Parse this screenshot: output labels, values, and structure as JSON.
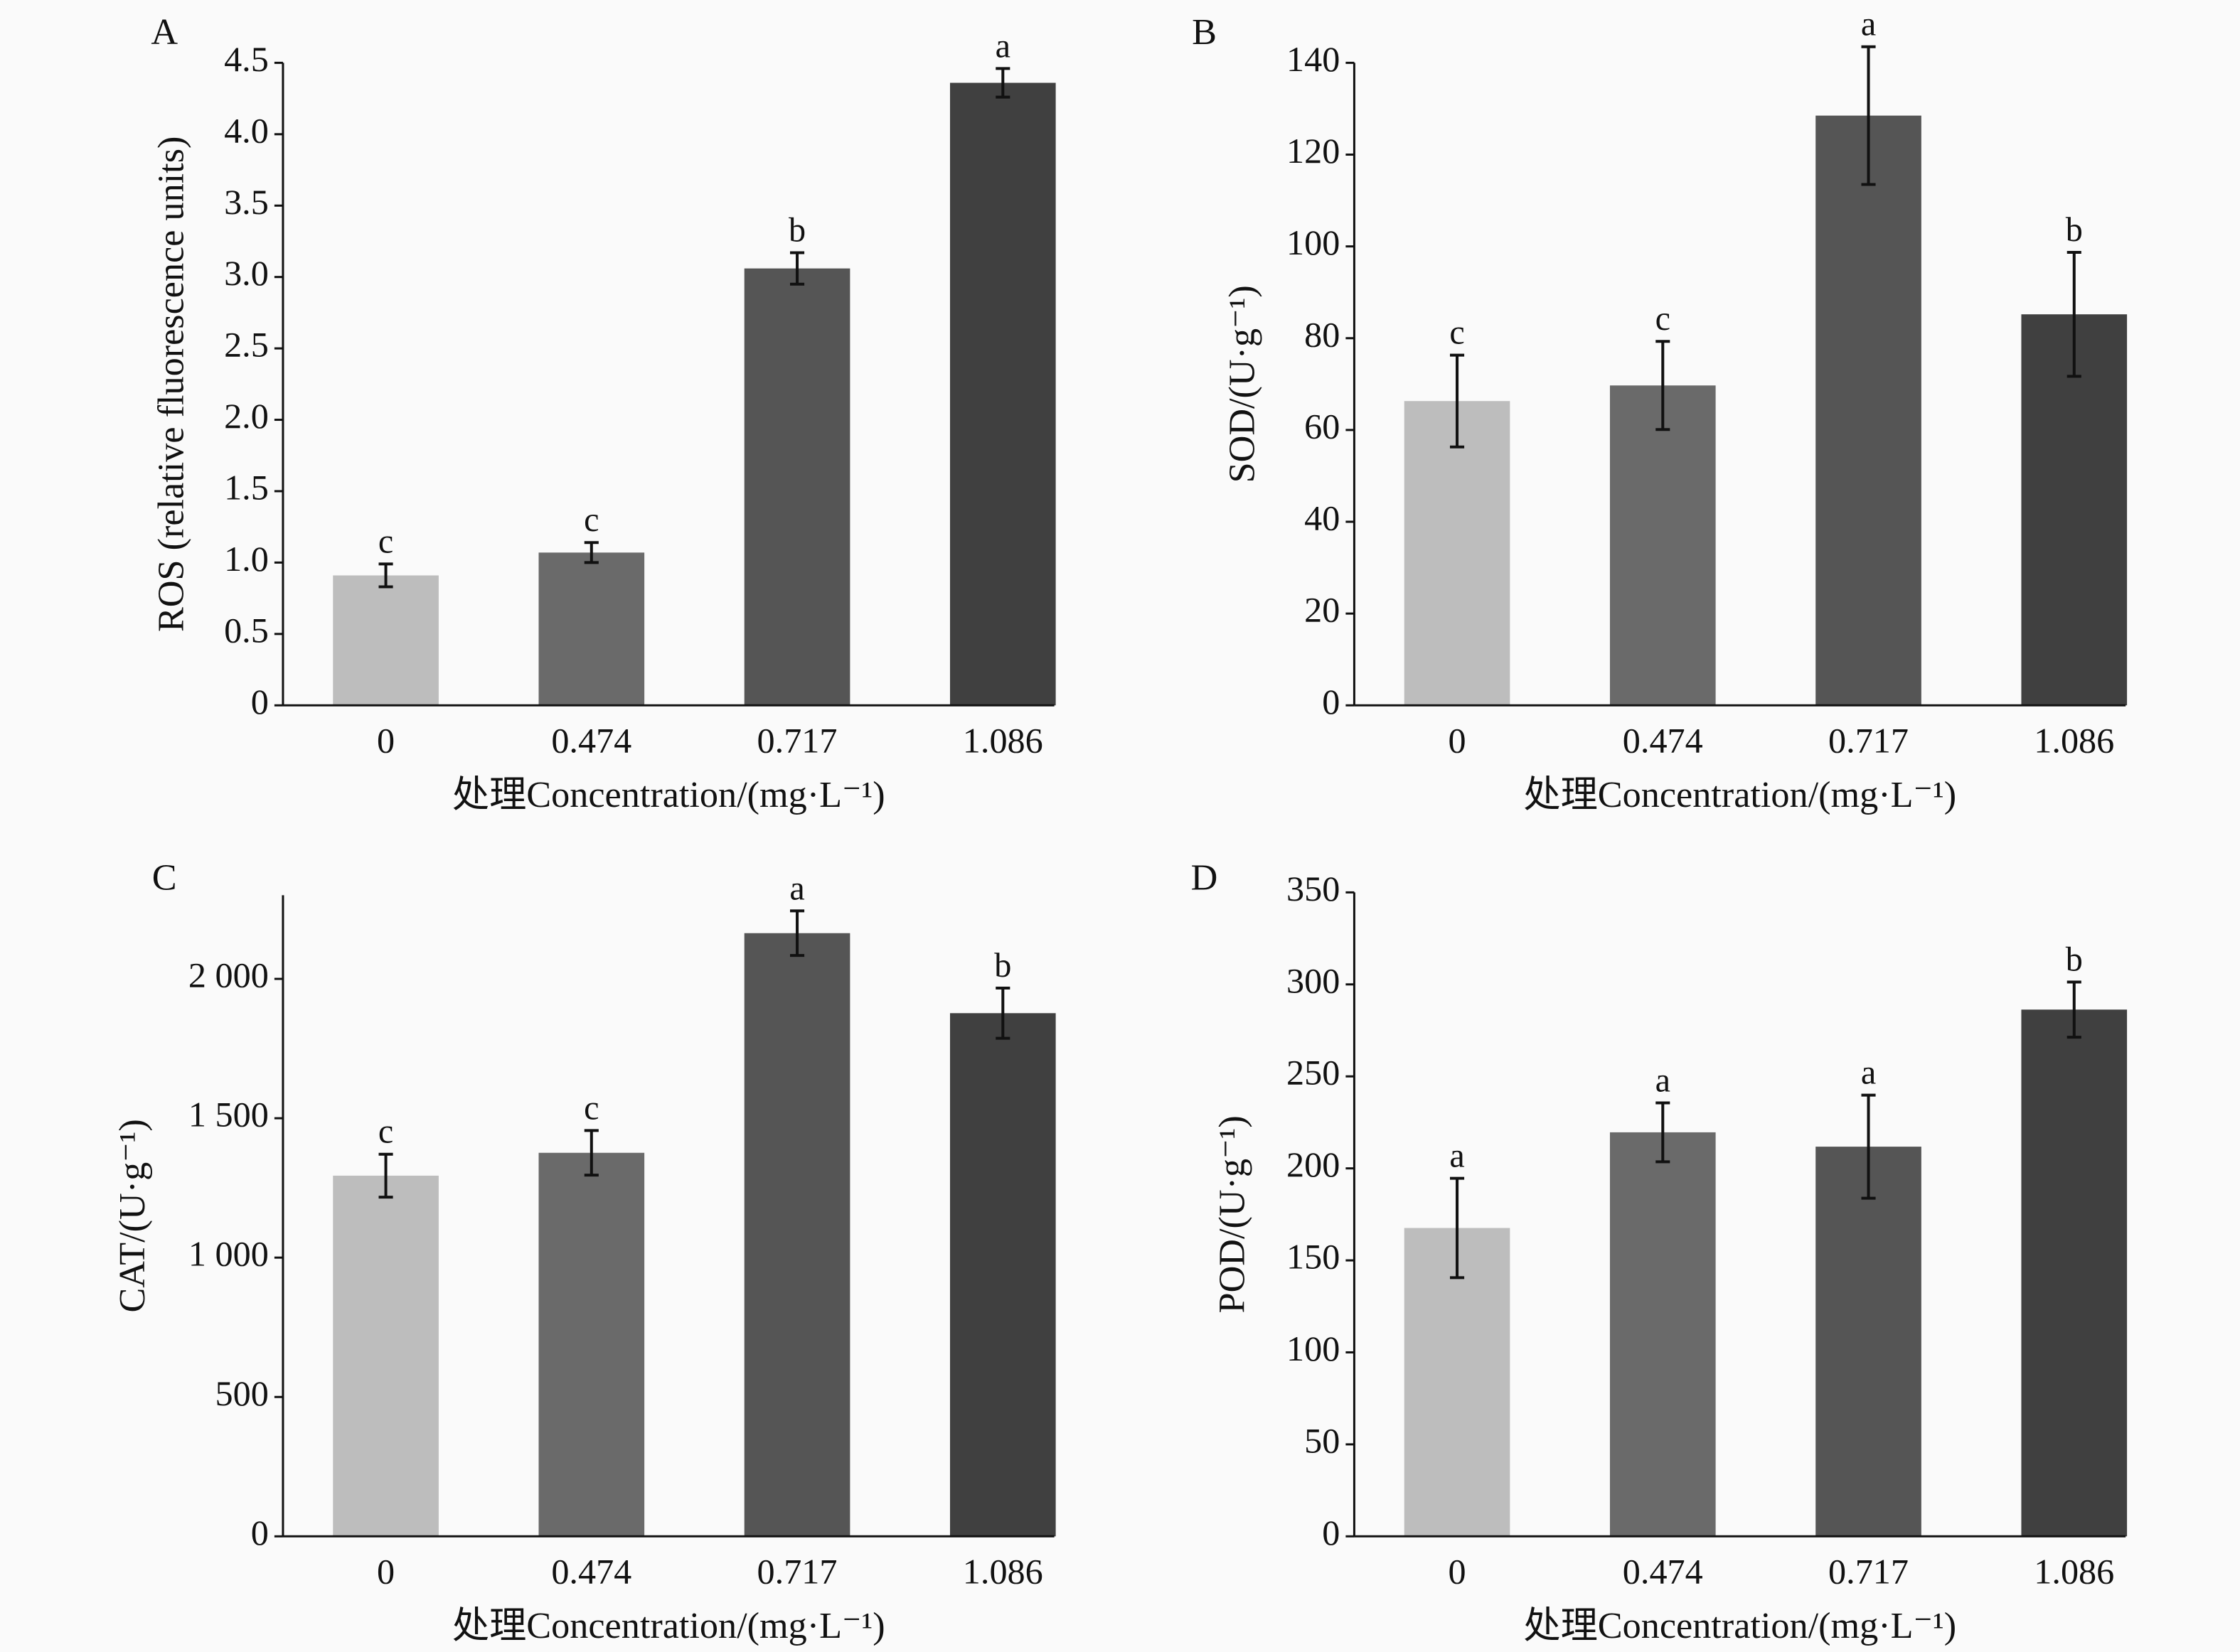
{
  "chart_data": [
    {
      "type": "bar",
      "panel": "A",
      "categories": [
        "0",
        "0.474",
        "0.717",
        "1.086"
      ],
      "values": [
        0.91,
        1.07,
        3.06,
        4.36
      ],
      "errors": [
        0.08,
        0.07,
        0.11,
        0.1
      ],
      "letters": [
        "c",
        "c",
        "b",
        "a"
      ],
      "xlabel": "处理Concentration/(mg·L⁻¹)",
      "ylabel": "ROS (relative fluorescence units)",
      "ylim": [
        0,
        4.5
      ],
      "yticks": [
        0,
        0.5,
        1.0,
        1.5,
        2.0,
        2.5,
        3.0,
        3.5,
        4.0,
        4.5
      ],
      "ytick_labels": [
        "0",
        "0.5",
        "1.0",
        "1.5",
        "2.0",
        "2.5",
        "3.0",
        "3.5",
        "4.0",
        "4.5"
      ]
    },
    {
      "type": "bar",
      "panel": "B",
      "categories": [
        "0",
        "0.474",
        "0.717",
        "1.086"
      ],
      "values": [
        66.3,
        69.7,
        128.5,
        85.2
      ],
      "errors": [
        10,
        9.6,
        15,
        13.5
      ],
      "letters": [
        "c",
        "c",
        "a",
        "b"
      ],
      "xlabel": "处理Concentration/(mg·L⁻¹)",
      "ylabel": "SOD/(U·g⁻¹)",
      "ylim": [
        0,
        140
      ],
      "yticks": [
        0,
        20,
        40,
        60,
        80,
        100,
        120,
        140
      ],
      "ytick_labels": [
        "0",
        "20",
        "40",
        "60",
        "80",
        "100",
        "120",
        "140"
      ]
    },
    {
      "type": "bar",
      "panel": "C",
      "categories": [
        "0",
        "0.474",
        "0.717",
        "1.086"
      ],
      "values": [
        1294,
        1376,
        2164,
        1877
      ],
      "errors": [
        77,
        80,
        80,
        90
      ],
      "letters": [
        "c",
        "c",
        "a",
        "b"
      ],
      "xlabel": "处理Concentration/(mg·L⁻¹)",
      "ylabel": "CAT/(U·g⁻¹)",
      "ylim": [
        0,
        2300
      ],
      "yticks": [
        0,
        500,
        1000,
        1500,
        2000
      ],
      "ytick_labels": [
        "0",
        "500",
        "1 000",
        "1 500",
        "2 000"
      ]
    },
    {
      "type": "bar",
      "panel": "D",
      "categories": [
        "0",
        "0.474",
        "0.717",
        "1.086"
      ],
      "values": [
        167.6,
        219.6,
        211.8,
        286.3
      ],
      "errors": [
        27,
        16,
        28,
        15
      ],
      "letters": [
        "a",
        "a",
        "a",
        "b"
      ],
      "xlabel": "处理Concentration/(mg·L⁻¹)",
      "ylabel": "POD/(U·g⁻¹)",
      "ylim": [
        0,
        350
      ],
      "yticks": [
        0,
        50,
        100,
        150,
        200,
        250,
        300,
        350
      ],
      "ytick_labels": [
        "0",
        "50",
        "100",
        "150",
        "200",
        "250",
        "300",
        "350"
      ]
    }
  ],
  "colors": [
    "#bdbdbd",
    "#6a6a6a",
    "#555555",
    "#404040"
  ]
}
